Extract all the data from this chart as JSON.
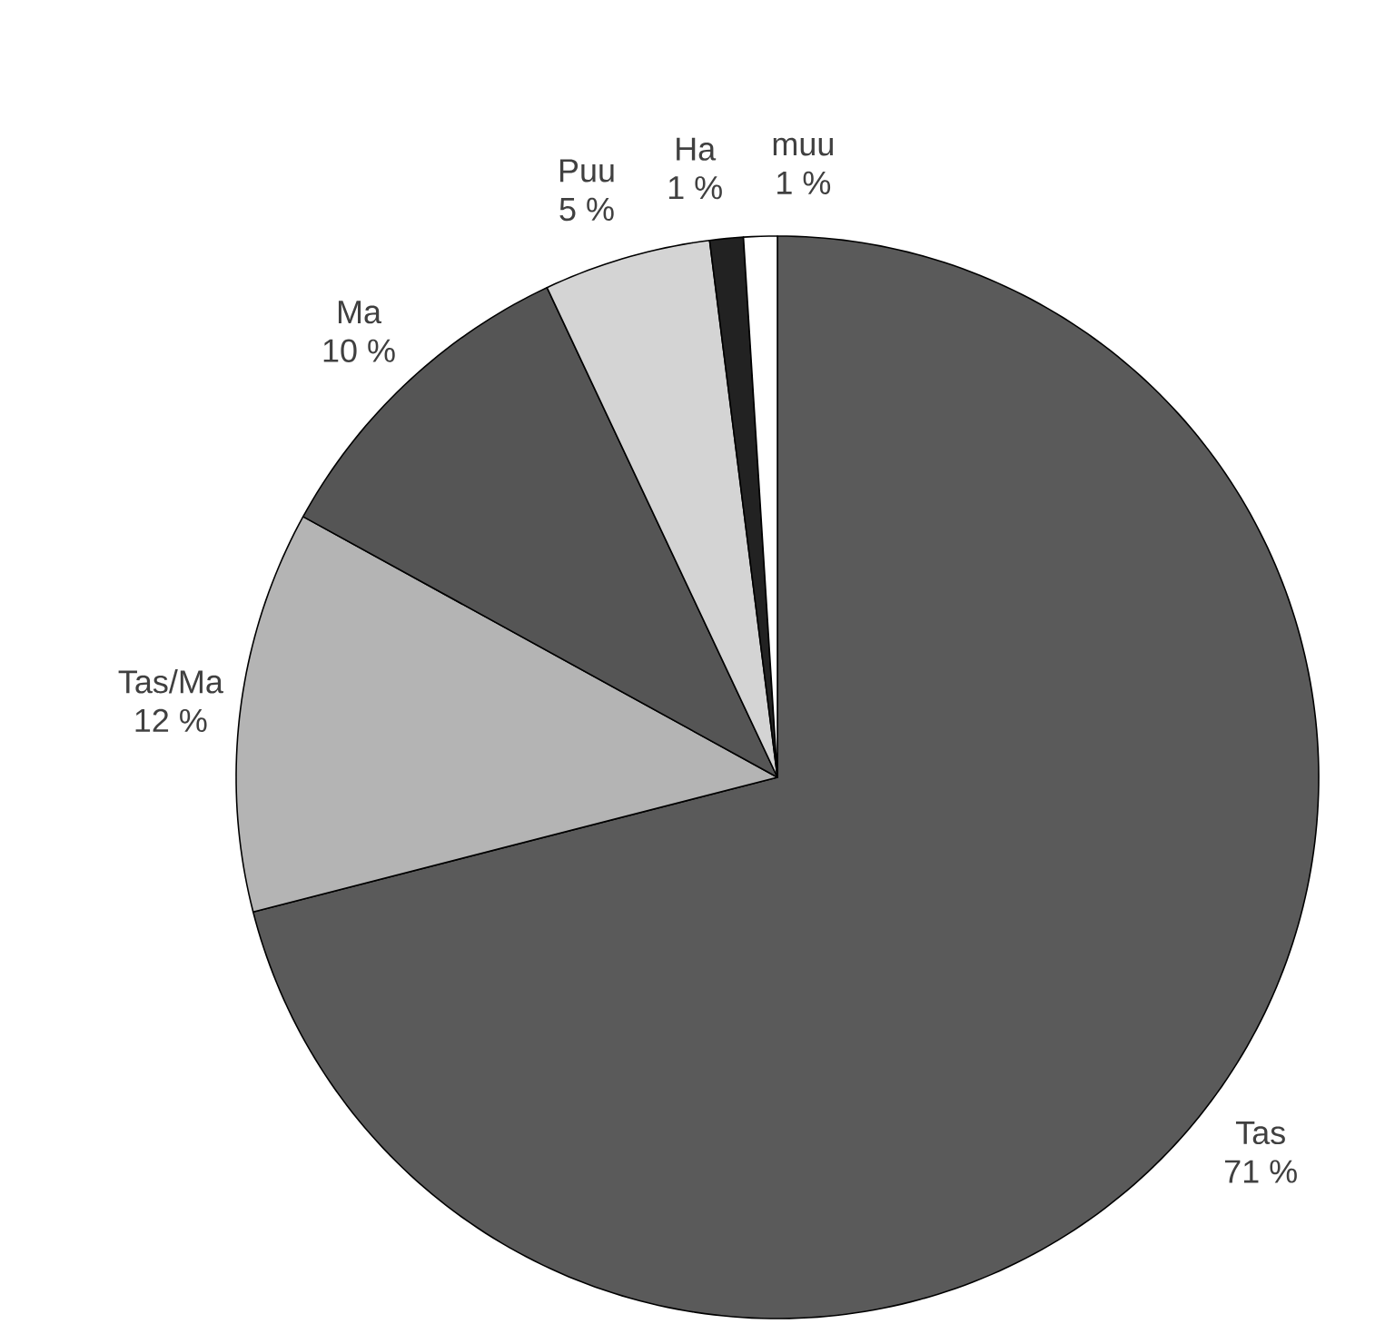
{
  "chart_data": {
    "type": "pie",
    "categories": [
      "Tas",
      "Tas/Ma",
      "Ma",
      "Puu",
      "Ha",
      "muu"
    ],
    "values": [
      71,
      12,
      10,
      5,
      1,
      1
    ],
    "value_labels": [
      "71 %",
      "12 %",
      "10 %",
      "5 %",
      "1 %",
      "1 %"
    ],
    "colors": [
      "#5a5a5a",
      "#b4b4b4",
      "#555555",
      "#d4d4d4",
      "#222222",
      "#ffffff"
    ]
  }
}
